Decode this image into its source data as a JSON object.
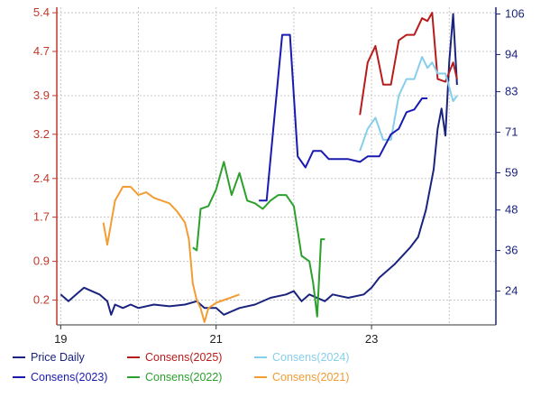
{
  "chart_data": {
    "type": "line",
    "title": "",
    "y_left": {
      "ticks": [
        "5.4",
        "4.7",
        "3.9",
        "3.2",
        "2.4",
        "1.7",
        "0.9",
        "0.2"
      ],
      "range": [
        -0.25,
        5.5
      ]
    },
    "y_right": {
      "ticks": [
        "106",
        "94",
        "83",
        "71",
        "59",
        "48",
        "36",
        "24"
      ],
      "range": [
        14,
        108
      ]
    },
    "x_ticks": [
      "19",
      "21",
      "23"
    ],
    "grid": true,
    "legend_position": "bottom",
    "series": [
      {
        "name": "Price Daily",
        "axis": "right",
        "color": "#1a237e",
        "points": [
          [
            2019.0,
            23
          ],
          [
            2019.1,
            21
          ],
          [
            2019.2,
            23
          ],
          [
            2019.3,
            25
          ],
          [
            2019.4,
            24
          ],
          [
            2019.5,
            23
          ],
          [
            2019.6,
            21
          ],
          [
            2019.65,
            17
          ],
          [
            2019.7,
            20
          ],
          [
            2019.8,
            19
          ],
          [
            2019.9,
            20
          ],
          [
            2020.0,
            19
          ],
          [
            2020.2,
            20
          ],
          [
            2020.4,
            19.5
          ],
          [
            2020.6,
            20
          ],
          [
            2020.75,
            21
          ],
          [
            2020.85,
            19
          ],
          [
            2021.0,
            19
          ],
          [
            2021.1,
            17
          ],
          [
            2021.3,
            19
          ],
          [
            2021.5,
            20
          ],
          [
            2021.7,
            22
          ],
          [
            2021.9,
            23
          ],
          [
            2022.0,
            24
          ],
          [
            2022.1,
            21
          ],
          [
            2022.2,
            23
          ],
          [
            2022.4,
            21
          ],
          [
            2022.5,
            23
          ],
          [
            2022.7,
            22
          ],
          [
            2022.9,
            23
          ],
          [
            2023.0,
            25
          ],
          [
            2023.1,
            28
          ],
          [
            2023.3,
            32
          ],
          [
            2023.5,
            37
          ],
          [
            2023.6,
            40
          ],
          [
            2023.7,
            48
          ],
          [
            2023.8,
            60
          ],
          [
            2023.85,
            72
          ],
          [
            2023.9,
            78
          ],
          [
            2023.95,
            70
          ],
          [
            2024.0,
            92
          ],
          [
            2024.05,
            106
          ],
          [
            2024.1,
            85
          ]
        ]
      },
      {
        "name": "Consens(2025)",
        "axis": "left",
        "color": "#b71c1c",
        "points": [
          [
            2022.85,
            3.55
          ],
          [
            2022.95,
            4.5
          ],
          [
            2023.05,
            4.8
          ],
          [
            2023.15,
            4.1
          ],
          [
            2023.25,
            4.1
          ],
          [
            2023.35,
            4.9
          ],
          [
            2023.45,
            5.0
          ],
          [
            2023.55,
            5.0
          ],
          [
            2023.65,
            5.3
          ],
          [
            2023.72,
            5.25
          ],
          [
            2023.78,
            5.4
          ],
          [
            2023.85,
            4.2
          ],
          [
            2023.95,
            4.15
          ],
          [
            2024.05,
            4.5
          ],
          [
            2024.1,
            4.2
          ]
        ]
      },
      {
        "name": "Consens(2024)",
        "axis": "left",
        "color": "#87ceeb",
        "points": [
          [
            2022.85,
            2.9
          ],
          [
            2022.95,
            3.3
          ],
          [
            2023.05,
            3.5
          ],
          [
            2023.15,
            3.1
          ],
          [
            2023.25,
            3.1
          ],
          [
            2023.35,
            3.9
          ],
          [
            2023.45,
            4.2
          ],
          [
            2023.55,
            4.2
          ],
          [
            2023.65,
            4.6
          ],
          [
            2023.72,
            4.4
          ],
          [
            2023.78,
            4.5
          ],
          [
            2023.85,
            4.3
          ],
          [
            2023.95,
            4.3
          ],
          [
            2024.05,
            3.8
          ],
          [
            2024.1,
            3.9
          ]
        ]
      },
      {
        "name": "Consens(2023)",
        "axis": "left",
        "color": "#1a1ab0",
        "points": [
          [
            2021.55,
            2.0
          ],
          [
            2021.65,
            2.0
          ],
          [
            2021.75,
            3.5
          ],
          [
            2021.85,
            5.0
          ],
          [
            2021.95,
            5.0
          ],
          [
            2022.05,
            2.8
          ],
          [
            2022.15,
            2.6
          ],
          [
            2022.25,
            2.9
          ],
          [
            2022.35,
            2.9
          ],
          [
            2022.45,
            2.75
          ],
          [
            2022.55,
            2.75
          ],
          [
            2022.7,
            2.75
          ],
          [
            2022.85,
            2.7
          ],
          [
            2022.95,
            2.8
          ],
          [
            2023.1,
            2.8
          ],
          [
            2023.25,
            3.2
          ],
          [
            2023.35,
            3.3
          ],
          [
            2023.45,
            3.6
          ],
          [
            2023.55,
            3.65
          ],
          [
            2023.65,
            3.85
          ],
          [
            2023.72,
            3.85
          ]
        ]
      },
      {
        "name": "Consens(2022)",
        "axis": "left",
        "color": "#2ca02c",
        "points": [
          [
            2020.7,
            1.15
          ],
          [
            2020.75,
            1.1
          ],
          [
            2020.8,
            1.85
          ],
          [
            2020.9,
            1.9
          ],
          [
            2021.0,
            2.2
          ],
          [
            2021.1,
            2.7
          ],
          [
            2021.2,
            2.1
          ],
          [
            2021.3,
            2.5
          ],
          [
            2021.4,
            2.0
          ],
          [
            2021.5,
            1.95
          ],
          [
            2021.6,
            1.85
          ],
          [
            2021.7,
            2.0
          ],
          [
            2021.8,
            2.1
          ],
          [
            2021.9,
            2.1
          ],
          [
            2022.0,
            1.9
          ],
          [
            2022.1,
            1.0
          ],
          [
            2022.2,
            0.9
          ],
          [
            2022.25,
            0.5
          ],
          [
            2022.3,
            -0.1
          ],
          [
            2022.35,
            1.3
          ],
          [
            2022.4,
            1.3
          ]
        ]
      },
      {
        "name": "Consens(2021)",
        "axis": "left",
        "color": "#f39c33",
        "points": [
          [
            2019.55,
            1.6
          ],
          [
            2019.6,
            1.2
          ],
          [
            2019.7,
            2.0
          ],
          [
            2019.8,
            2.25
          ],
          [
            2019.9,
            2.25
          ],
          [
            2020.0,
            2.1
          ],
          [
            2020.1,
            2.15
          ],
          [
            2020.2,
            2.05
          ],
          [
            2020.3,
            2.0
          ],
          [
            2020.4,
            1.95
          ],
          [
            2020.5,
            1.8
          ],
          [
            2020.6,
            1.6
          ],
          [
            2020.65,
            1.3
          ],
          [
            2020.7,
            0.5
          ],
          [
            2020.75,
            0.2
          ],
          [
            2020.8,
            0.05
          ],
          [
            2020.85,
            -0.2
          ],
          [
            2020.9,
            0.05
          ],
          [
            2021.0,
            0.15
          ],
          [
            2021.1,
            0.2
          ],
          [
            2021.2,
            0.25
          ],
          [
            2021.3,
            0.3
          ]
        ]
      }
    ]
  }
}
